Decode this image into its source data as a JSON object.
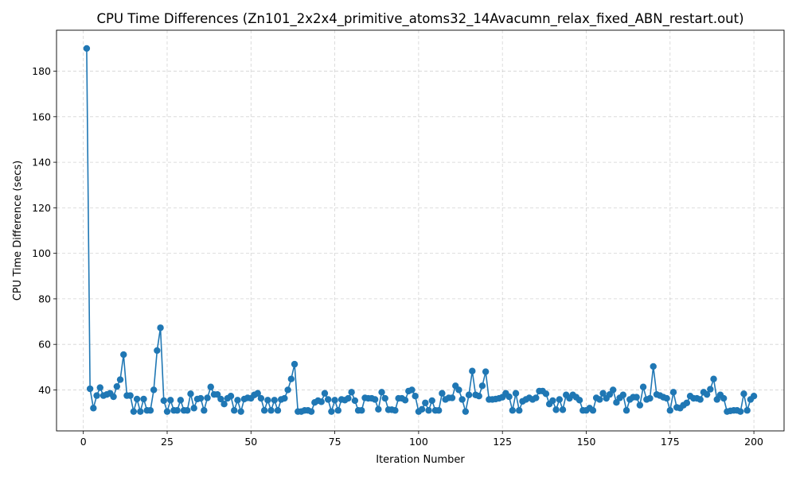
{
  "chart_data": {
    "type": "line",
    "title": "CPU Time Differences (Zn101_2x2x4_primitive_atoms32_14Avacumn_relax_fixed_ABN_restart.out)",
    "xlabel": "Iteration Number",
    "ylabel": "CPU Time Difference (secs)",
    "xlim": [
      -8,
      209
    ],
    "ylim": [
      22,
      198
    ],
    "xticks": [
      0,
      25,
      50,
      75,
      100,
      125,
      150,
      175,
      200
    ],
    "yticks": [
      40,
      60,
      80,
      100,
      120,
      140,
      160,
      180
    ],
    "grid": true,
    "marker": "circle",
    "color": "#1f77b4",
    "series": [
      {
        "x": [
          1,
          2,
          3,
          4,
          5,
          6,
          7,
          8,
          9,
          10,
          11,
          12,
          13,
          14,
          15,
          16,
          17,
          18,
          19,
          20,
          21,
          22,
          23,
          24,
          25,
          26,
          27,
          28,
          29,
          30,
          31,
          32,
          33,
          34,
          35,
          36,
          37,
          38,
          39,
          40,
          41,
          42,
          43,
          44,
          45,
          46,
          47,
          48,
          49,
          50,
          51,
          52,
          53,
          54,
          55,
          56,
          57,
          58,
          59,
          60,
          61,
          62,
          63,
          64,
          65,
          66,
          67,
          68,
          69,
          70,
          71,
          72,
          73,
          74,
          75,
          76,
          77,
          78,
          79,
          80,
          81,
          82,
          83,
          84,
          85,
          86,
          87,
          88,
          89,
          90,
          91,
          92,
          93,
          94,
          95,
          96,
          97,
          98,
          99,
          100,
          101,
          102,
          103,
          104,
          105,
          106,
          107,
          108,
          109,
          110,
          111,
          112,
          113,
          114,
          115,
          116,
          117,
          118,
          119,
          120,
          121,
          122,
          123,
          124,
          125,
          126,
          127,
          128,
          129,
          130,
          131,
          132,
          133,
          134,
          135,
          136,
          137,
          138,
          139,
          140,
          141,
          142,
          143,
          144,
          145,
          146,
          147,
          148,
          149,
          150,
          151,
          152,
          153,
          154,
          155,
          156,
          157,
          158,
          159,
          160,
          161,
          162,
          163,
          164,
          165,
          166,
          167,
          168,
          169,
          170,
          171,
          172,
          173,
          174,
          175,
          176,
          177,
          178,
          179,
          180,
          181,
          182,
          183,
          184,
          185,
          186,
          187,
          188,
          189,
          190,
          191,
          192,
          193,
          194,
          195,
          196,
          197,
          198,
          199,
          200
        ],
        "values": [
          190,
          40.5,
          32,
          37.5,
          41,
          37.5,
          38,
          38.5,
          37,
          41.5,
          44.5,
          55.5,
          37.5,
          37.5,
          30.5,
          36,
          30.5,
          36,
          31,
          31,
          40,
          57.3,
          67.3,
          35.3,
          30.5,
          35.5,
          31,
          31,
          35.5,
          31,
          31,
          38.3,
          32,
          36,
          36.3,
          31,
          36.5,
          41.3,
          38,
          38,
          36,
          33.8,
          36.3,
          37.3,
          31,
          35.5,
          30.5,
          36,
          36.5,
          36.3,
          37.8,
          38.5,
          36.3,
          31,
          35.5,
          31,
          35.5,
          31,
          35.8,
          36.3,
          40,
          44.8,
          51.3,
          30.5,
          30.5,
          31,
          31,
          30.5,
          34.5,
          35.3,
          34.8,
          38.5,
          35.8,
          30.5,
          35.5,
          31,
          35.8,
          35.5,
          36.3,
          39,
          35.3,
          31,
          31,
          36.5,
          36.3,
          36.3,
          35.8,
          31.5,
          39,
          36.3,
          31.3,
          31.3,
          31,
          36.3,
          36.3,
          35.5,
          39.5,
          40,
          37.3,
          30.5,
          31.5,
          34.3,
          31,
          35.3,
          31,
          31,
          38.5,
          35.8,
          36.5,
          36.5,
          41.8,
          40,
          35.8,
          30.5,
          37.8,
          48.3,
          37.8,
          37.3,
          41.8,
          48,
          35.8,
          35.8,
          36,
          36.3,
          36.8,
          38.5,
          37,
          31,
          38.5,
          31,
          35,
          35.8,
          36.5,
          35.8,
          36.5,
          39.5,
          39.5,
          38.3,
          33.8,
          35.3,
          31.3,
          35.8,
          31.3,
          37.8,
          36.3,
          37.8,
          36.8,
          35.5,
          31,
          31,
          32,
          31,
          36.5,
          35.8,
          38.5,
          36.3,
          38,
          40,
          34.5,
          36.5,
          37.8,
          31,
          35.8,
          36.8,
          36.8,
          33.3,
          41.3,
          35.8,
          36.3,
          50.3,
          38,
          37.5,
          36.8,
          36.3,
          31,
          39,
          32.3,
          32,
          33.3,
          34.3,
          37.3,
          36.3,
          36.3,
          35.8,
          39,
          38,
          40.3,
          44.8,
          35.8,
          37.8,
          36.3,
          30.5,
          30.8,
          31,
          31,
          30.5,
          38.3,
          31,
          35.8,
          37.3
        ]
      }
    ]
  }
}
